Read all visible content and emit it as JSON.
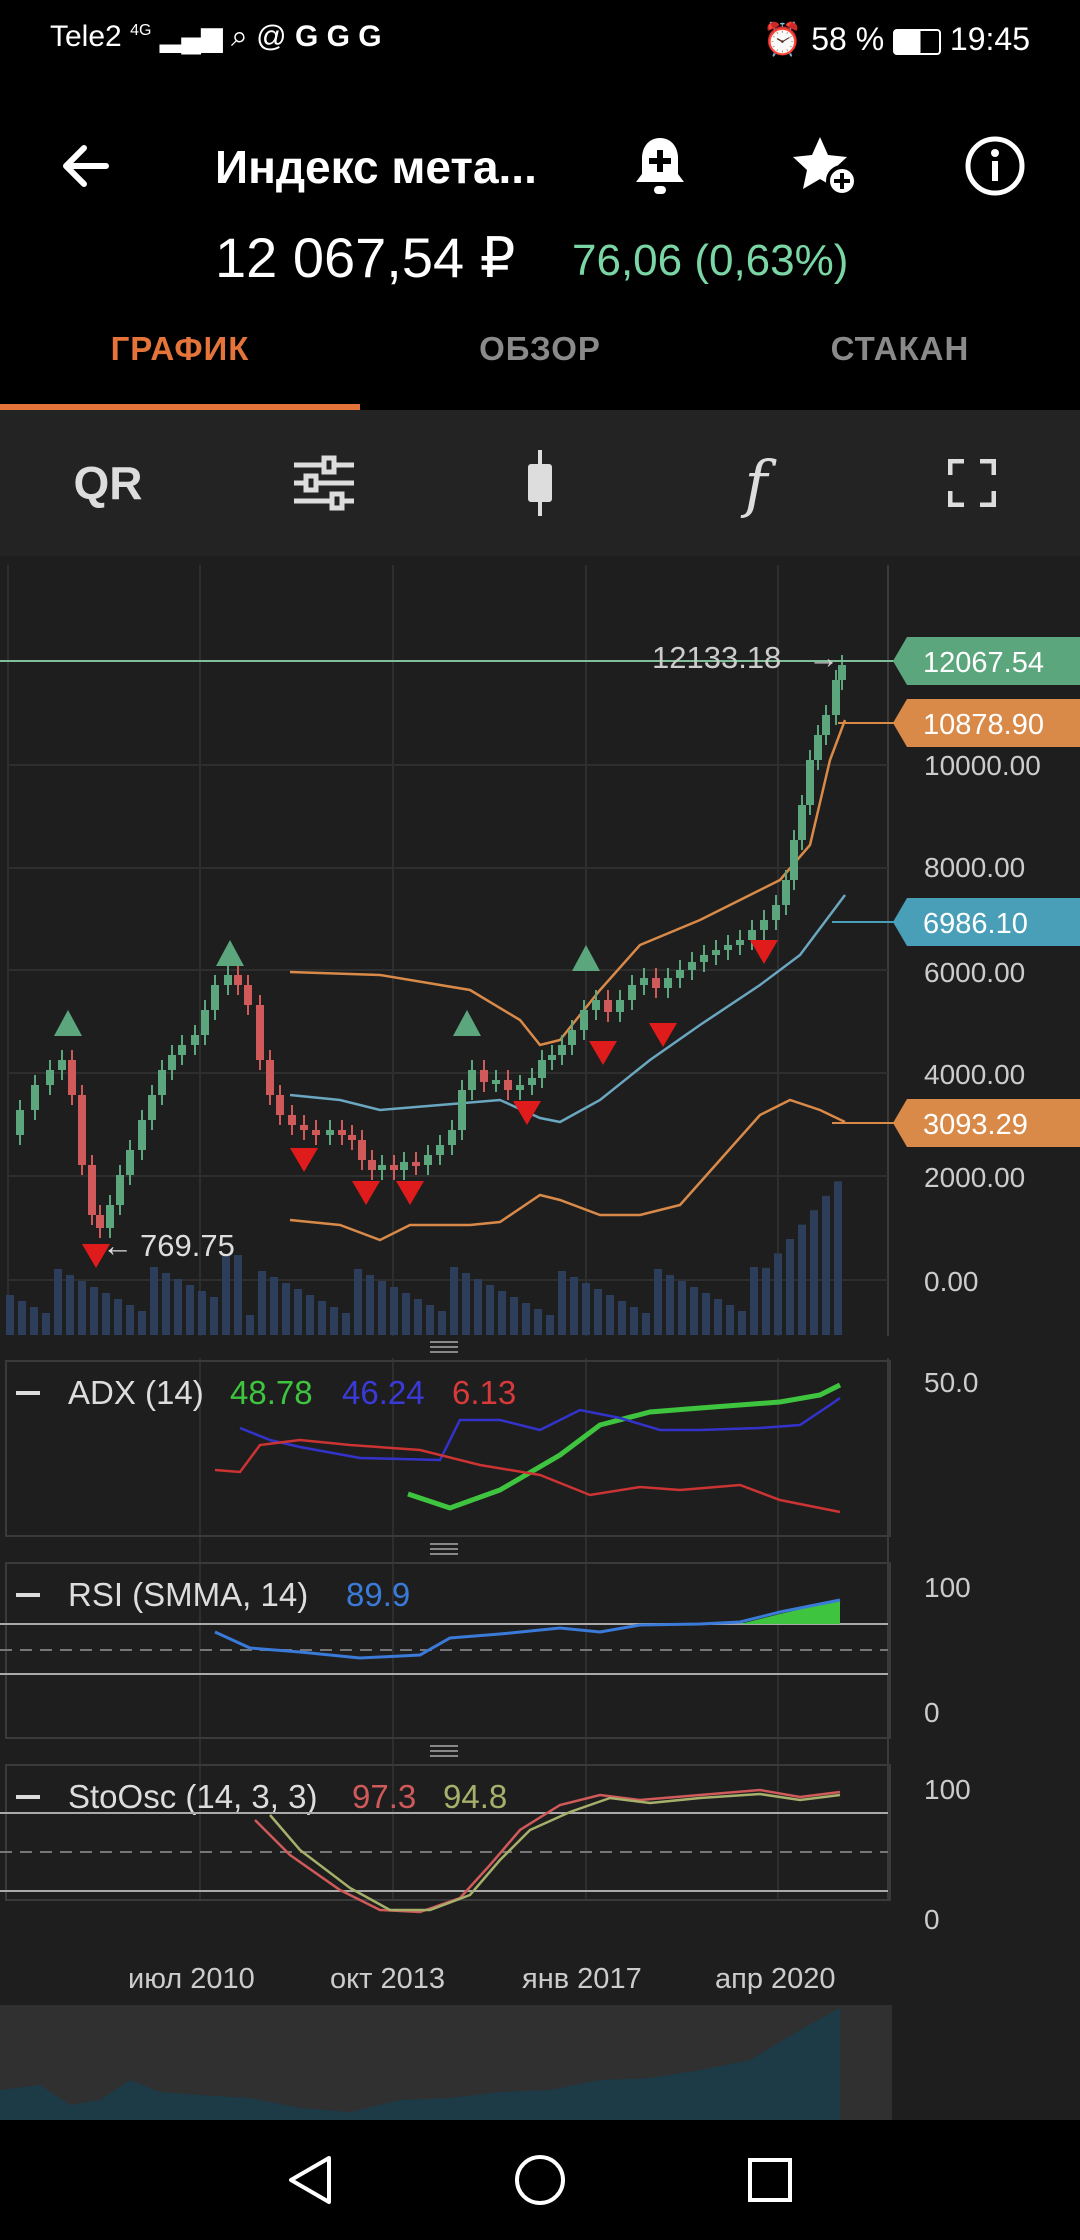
{
  "status_bar": {
    "carrier": "Tele2",
    "network": "4G",
    "battery": "58 %",
    "time": "19:45"
  },
  "header": {
    "title": "Индекс мета...",
    "price": "12 067,54 ₽",
    "change": "76,06 (0,63%)"
  },
  "tabs": [
    {
      "label": "ГРАФИК",
      "active": true
    },
    {
      "label": "ОБЗОР",
      "active": false
    },
    {
      "label": "СТАКАН",
      "active": false
    }
  ],
  "toolbar": {
    "qr_label": "QR",
    "func_label": "f"
  },
  "chart": {
    "price_labels": [
      "12067.54",
      "10878.90",
      "6986.10",
      "3093.29"
    ],
    "price_label_colors": [
      "#5ba67c",
      "#d98a48",
      "#4a9fb8",
      "#d98a48"
    ],
    "axis_ticks": [
      "10000.00",
      "8000.00",
      "6000.00",
      "4000.00",
      "2000.00",
      "0.00"
    ],
    "max_marker": "12133.18",
    "min_marker": "769.75",
    "x_labels": [
      "июл 2010",
      "окт 2013",
      "янв 2017",
      "апр 2020"
    ]
  },
  "adx": {
    "label": "ADX (14)",
    "values": [
      "48.78",
      "46.24",
      "6.13"
    ],
    "value_colors": [
      "#3ec43e",
      "#3a3ad8",
      "#d83a3a"
    ],
    "axis": "50.0"
  },
  "rsi": {
    "label": "RSI (SMMA, 14)",
    "value": "89.9",
    "axis_top": "100",
    "axis_bottom": "0"
  },
  "stoch": {
    "label": "StoOsc (14, 3, 3)",
    "values": [
      "97.3",
      "94.8"
    ],
    "axis_top": "100",
    "axis_bottom": "0"
  }
}
